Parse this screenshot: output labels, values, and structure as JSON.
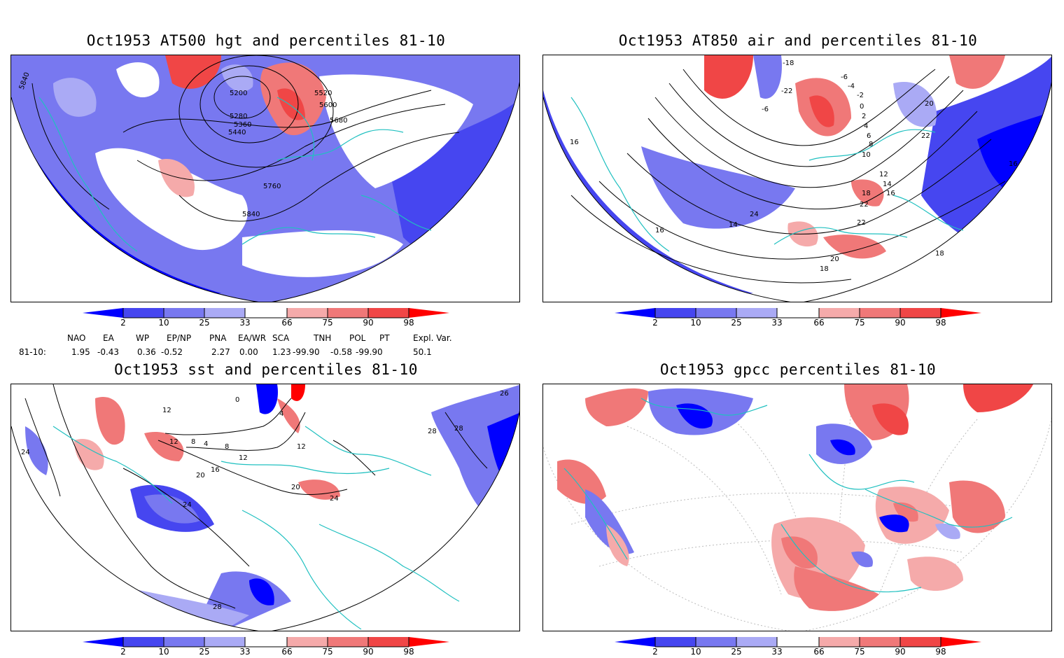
{
  "panels": [
    {
      "title": "Oct1953 AT500 hgt and percentiles 81-10",
      "contour_labels": [
        "5200",
        "5280",
        "5360",
        "5440",
        "5520",
        "5600",
        "5680",
        "5760",
        "5840",
        "5840"
      ]
    },
    {
      "title": "Oct1953 AT850 air and percentiles 81-10",
      "contour_labels": [
        "-18",
        "-22",
        "-6",
        "-6",
        "-4",
        "-2",
        "0",
        "2",
        "4",
        "6",
        "8",
        "10",
        "12",
        "14",
        "16",
        "18",
        "20",
        "22",
        "22",
        "22",
        "24",
        "14",
        "16",
        "16",
        "16",
        "18",
        "20",
        "18"
      ]
    },
    {
      "title": "Oct1953 sst and percentiles 81-10",
      "contour_labels": [
        "12",
        "12",
        "8",
        "4",
        "8",
        "12",
        "16",
        "20",
        "24",
        "28",
        "28",
        "24",
        "26",
        "28",
        "20",
        "24",
        "4",
        "0",
        "12"
      ]
    },
    {
      "title": "Oct1953 gpcc percentiles 81-10",
      "contour_labels": []
    }
  ],
  "colorbar": {
    "ticks": [
      "2",
      "10",
      "25",
      "33",
      "66",
      "75",
      "90",
      "98"
    ],
    "colors": {
      "dark_blue": "#0000ff",
      "blue": "#4646f0",
      "mid_blue": "#7878f0",
      "light_blue": "#aaaaf5",
      "white": "#ffffff",
      "light_red": "#f5aaaa",
      "mid_red": "#f07878",
      "red": "#f04646",
      "dark_red": "#ff0000"
    }
  },
  "indices": {
    "headers": [
      "NAO",
      "EA",
      "WP",
      "EP/NP",
      "PNA",
      "EA/WR",
      "SCA",
      "TNH",
      "POL",
      "PT",
      "Expl. Var."
    ],
    "row_label": "81-10:",
    "values": [
      "1.95",
      "-0.43",
      "0.36",
      "-0.52",
      "2.27",
      "0.00",
      "1.23",
      "-99.90",
      "-0.58",
      "-99.90",
      "50.1"
    ]
  },
  "overlay_color": "#20c0c0"
}
